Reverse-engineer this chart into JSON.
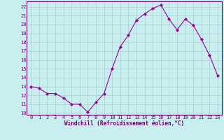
{
  "x": [
    0,
    1,
    2,
    3,
    4,
    5,
    6,
    7,
    8,
    9,
    10,
    11,
    12,
    13,
    14,
    15,
    16,
    17,
    18,
    19,
    20,
    21,
    22,
    23
  ],
  "y": [
    13.0,
    12.8,
    12.2,
    12.2,
    11.7,
    11.0,
    11.0,
    10.1,
    11.2,
    12.2,
    15.0,
    17.5,
    18.8,
    20.5,
    21.2,
    21.8,
    22.2,
    20.6,
    19.4,
    20.6,
    19.9,
    18.3,
    16.5,
    14.2
  ],
  "line_color": "#990099",
  "marker": "D",
  "marker_size": 2.0,
  "bg_color": "#c8eef0",
  "grid_color": "#aacccc",
  "xlabel": "Windchill (Refroidissement éolien,°C)",
  "tick_color": "#660066",
  "xlim": [
    -0.5,
    23.5
  ],
  "ylim": [
    9.8,
    22.6
  ],
  "yticks": [
    10,
    11,
    12,
    13,
    14,
    15,
    16,
    17,
    18,
    19,
    20,
    21,
    22
  ],
  "xticks": [
    0,
    1,
    2,
    3,
    4,
    5,
    6,
    7,
    8,
    9,
    10,
    11,
    12,
    13,
    14,
    15,
    16,
    17,
    18,
    19,
    20,
    21,
    22,
    23
  ],
  "tick_fontsize": 5.0,
  "xlabel_fontsize": 5.5,
  "spine_color": "#660066"
}
